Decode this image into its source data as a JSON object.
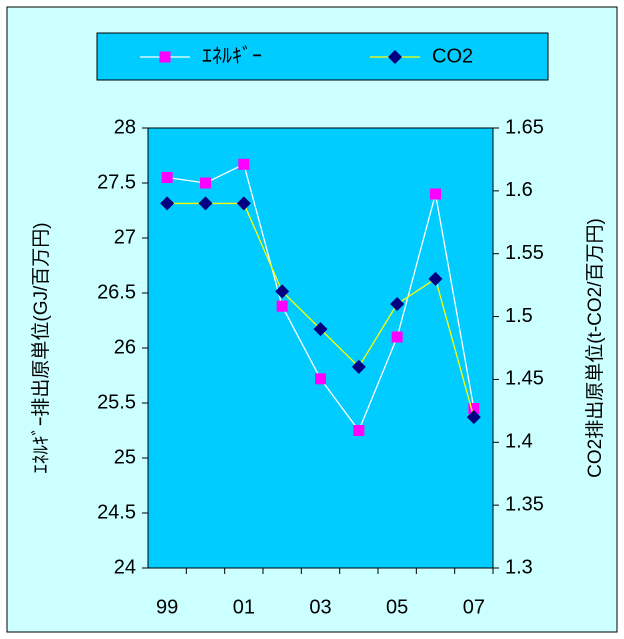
{
  "chart_data": {
    "type": "line",
    "ylabel": "ｴﾈﾙｷﾞｰ排出原単位(GJ/百万円)",
    "y2label": "CO2排出原単位(t-CO2/百万円)",
    "categories": [
      "99",
      null,
      "01",
      null,
      "03",
      null,
      "05",
      null,
      "07"
    ],
    "series": [
      {
        "name": "ｴﾈﾙｷﾞｰ",
        "color": "#ff00ff",
        "line_color": "#ffffff",
        "marker": "square",
        "values": [
          27.55,
          27.5,
          27.67,
          26.38,
          25.72,
          25.25,
          26.1,
          27.4,
          25.45
        ]
      },
      {
        "name": "CO2",
        "color": "#000080",
        "line_color": "#ffff00",
        "marker": "diamond",
        "axis": "y2",
        "values": [
          1.59,
          1.59,
          1.59,
          1.52,
          1.49,
          1.46,
          1.51,
          1.53,
          1.42
        ]
      }
    ],
    "ylim": [
      24,
      28
    ],
    "yticks": [
      24,
      24.5,
      25,
      25.5,
      26,
      26.5,
      27,
      27.5,
      28
    ],
    "y2lim": [
      1.3,
      1.65
    ],
    "y2ticks": [
      1.3,
      1.35,
      1.4,
      1.45,
      1.5,
      1.55,
      1.6,
      1.65
    ],
    "grid": false,
    "legend": "top",
    "plot_color": "#00ccff",
    "background": "#ccffff"
  }
}
